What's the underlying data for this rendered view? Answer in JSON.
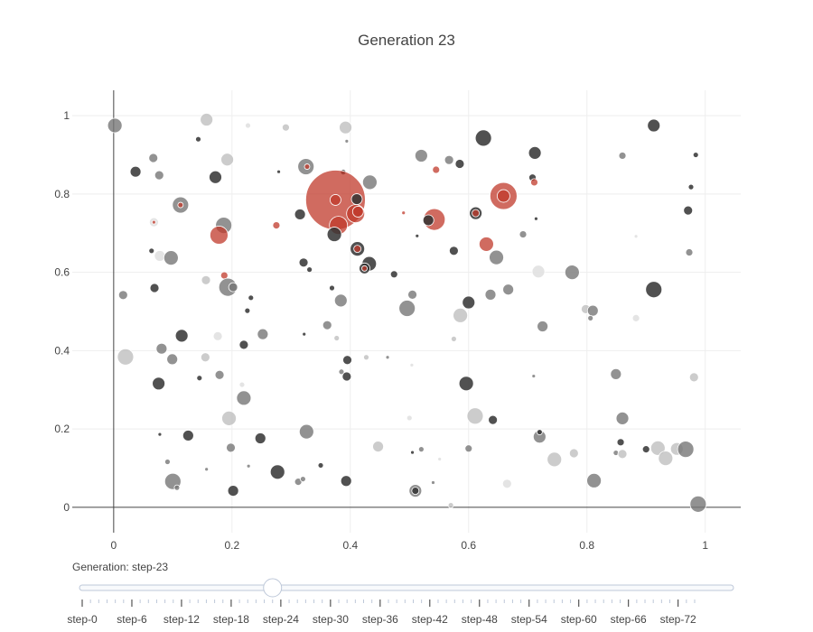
{
  "chart_data": {
    "type": "scatter",
    "title": "Generation 23",
    "xlabel": "",
    "ylabel": "",
    "xlim": [
      -0.07,
      1.06
    ],
    "ylim": [
      -0.065,
      1.065
    ],
    "xticks": [
      0,
      0.2,
      0.4,
      0.6,
      0.8,
      1
    ],
    "xtick_labels": [
      "0",
      "0.2",
      "0.4",
      "0.6",
      "0.8",
      "1"
    ],
    "yticks": [
      0,
      0.2,
      0.4,
      0.6,
      0.8,
      1
    ],
    "ytick_labels": [
      "0",
      "0.2",
      "0.4",
      "0.6",
      "0.8",
      "1"
    ],
    "grid": true,
    "colors": {
      "dark": "#333333",
      "mid": "#777777",
      "light": "#bbbbbb",
      "faint": "#dddddd",
      "red": "#c0392b"
    },
    "points": [
      {
        "x": 0.002,
        "y": 0.975,
        "r": 8,
        "c": "mid"
      },
      {
        "x": 0.157,
        "y": 0.99,
        "r": 7,
        "c": "light"
      },
      {
        "x": 0.227,
        "y": 0.975,
        "r": 3,
        "c": "faint"
      },
      {
        "x": 0.291,
        "y": 0.97,
        "r": 4,
        "c": "light"
      },
      {
        "x": 0.392,
        "y": 0.97,
        "r": 7,
        "c": "light"
      },
      {
        "x": 0.143,
        "y": 0.94,
        "r": 3,
        "c": "dark"
      },
      {
        "x": 0.394,
        "y": 0.935,
        "r": 2,
        "c": "mid"
      },
      {
        "x": 0.625,
        "y": 0.943,
        "r": 9,
        "c": "dark"
      },
      {
        "x": 0.712,
        "y": 0.905,
        "r": 7,
        "c": "dark"
      },
      {
        "x": 0.913,
        "y": 0.975,
        "r": 7,
        "c": "dark"
      },
      {
        "x": 0.067,
        "y": 0.892,
        "r": 5,
        "c": "mid"
      },
      {
        "x": 0.192,
        "y": 0.888,
        "r": 7,
        "c": "light"
      },
      {
        "x": 0.325,
        "y": 0.87,
        "r": 9,
        "c": "mid"
      },
      {
        "x": 0.327,
        "y": 0.87,
        "r": 3,
        "c": "red"
      },
      {
        "x": 0.52,
        "y": 0.898,
        "r": 7,
        "c": "mid"
      },
      {
        "x": 0.567,
        "y": 0.887,
        "r": 5,
        "c": "mid"
      },
      {
        "x": 0.585,
        "y": 0.877,
        "r": 5,
        "c": "dark"
      },
      {
        "x": 0.545,
        "y": 0.862,
        "r": 4,
        "c": "red"
      },
      {
        "x": 0.86,
        "y": 0.898,
        "r": 4,
        "c": "mid"
      },
      {
        "x": 0.984,
        "y": 0.9,
        "r": 3,
        "c": "dark"
      },
      {
        "x": 0.037,
        "y": 0.857,
        "r": 6,
        "c": "dark"
      },
      {
        "x": 0.077,
        "y": 0.848,
        "r": 5,
        "c": "mid"
      },
      {
        "x": 0.172,
        "y": 0.843,
        "r": 7,
        "c": "dark"
      },
      {
        "x": 0.279,
        "y": 0.857,
        "r": 2,
        "c": "dark"
      },
      {
        "x": 0.388,
        "y": 0.856,
        "r": 3,
        "c": "dark"
      },
      {
        "x": 0.433,
        "y": 0.83,
        "r": 8,
        "c": "mid"
      },
      {
        "x": 0.708,
        "y": 0.842,
        "r": 4,
        "c": "dark"
      },
      {
        "x": 0.711,
        "y": 0.83,
        "r": 4,
        "c": "red"
      },
      {
        "x": 0.976,
        "y": 0.818,
        "r": 3,
        "c": "dark"
      },
      {
        "x": 0.113,
        "y": 0.772,
        "r": 9,
        "c": "mid"
      },
      {
        "x": 0.113,
        "y": 0.772,
        "r": 3,
        "c": "red"
      },
      {
        "x": 0.375,
        "y": 0.785,
        "r": 33,
        "c": "red"
      },
      {
        "x": 0.375,
        "y": 0.785,
        "r": 6,
        "c": "red"
      },
      {
        "x": 0.411,
        "y": 0.787,
        "r": 6,
        "c": "dark"
      },
      {
        "x": 0.659,
        "y": 0.795,
        "r": 15,
        "c": "red"
      },
      {
        "x": 0.659,
        "y": 0.795,
        "r": 7,
        "c": "red"
      },
      {
        "x": 0.315,
        "y": 0.748,
        "r": 6,
        "c": "dark"
      },
      {
        "x": 0.409,
        "y": 0.75,
        "r": 10,
        "c": "red"
      },
      {
        "x": 0.413,
        "y": 0.755,
        "r": 6,
        "c": "red"
      },
      {
        "x": 0.49,
        "y": 0.752,
        "r": 2,
        "c": "red"
      },
      {
        "x": 0.542,
        "y": 0.735,
        "r": 12,
        "c": "red"
      },
      {
        "x": 0.532,
        "y": 0.733,
        "r": 6,
        "c": "dark"
      },
      {
        "x": 0.612,
        "y": 0.751,
        "r": 7,
        "c": "dark"
      },
      {
        "x": 0.612,
        "y": 0.751,
        "r": 4,
        "c": "red"
      },
      {
        "x": 0.714,
        "y": 0.737,
        "r": 2,
        "c": "dark"
      },
      {
        "x": 0.971,
        "y": 0.758,
        "r": 5,
        "c": "dark"
      },
      {
        "x": 0.068,
        "y": 0.728,
        "r": 5,
        "c": "faint"
      },
      {
        "x": 0.068,
        "y": 0.728,
        "r": 2,
        "c": "red"
      },
      {
        "x": 0.186,
        "y": 0.72,
        "r": 9,
        "c": "mid"
      },
      {
        "x": 0.178,
        "y": 0.695,
        "r": 10,
        "c": "red"
      },
      {
        "x": 0.275,
        "y": 0.72,
        "r": 4,
        "c": "red"
      },
      {
        "x": 0.38,
        "y": 0.72,
        "r": 10,
        "c": "red"
      },
      {
        "x": 0.373,
        "y": 0.697,
        "r": 8,
        "c": "dark"
      },
      {
        "x": 0.513,
        "y": 0.693,
        "r": 2,
        "c": "dark"
      },
      {
        "x": 0.63,
        "y": 0.672,
        "r": 8,
        "c": "red"
      },
      {
        "x": 0.692,
        "y": 0.697,
        "r": 4,
        "c": "mid"
      },
      {
        "x": 0.883,
        "y": 0.692,
        "r": 2,
        "c": "faint"
      },
      {
        "x": 0.412,
        "y": 0.66,
        "r": 8,
        "c": "dark"
      },
      {
        "x": 0.412,
        "y": 0.66,
        "r": 4,
        "c": "red"
      },
      {
        "x": 0.575,
        "y": 0.655,
        "r": 5,
        "c": "dark"
      },
      {
        "x": 0.064,
        "y": 0.655,
        "r": 3,
        "c": "dark"
      },
      {
        "x": 0.078,
        "y": 0.642,
        "r": 6,
        "c": "faint"
      },
      {
        "x": 0.097,
        "y": 0.637,
        "r": 8,
        "c": "mid"
      },
      {
        "x": 0.647,
        "y": 0.638,
        "r": 8,
        "c": "mid"
      },
      {
        "x": 0.973,
        "y": 0.651,
        "r": 4,
        "c": "mid"
      },
      {
        "x": 0.321,
        "y": 0.625,
        "r": 5,
        "c": "dark"
      },
      {
        "x": 0.331,
        "y": 0.607,
        "r": 3,
        "c": "dark"
      },
      {
        "x": 0.432,
        "y": 0.622,
        "r": 8,
        "c": "dark"
      },
      {
        "x": 0.424,
        "y": 0.61,
        "r": 6,
        "c": "dark"
      },
      {
        "x": 0.424,
        "y": 0.61,
        "r": 3,
        "c": "red"
      },
      {
        "x": 0.474,
        "y": 0.595,
        "r": 4,
        "c": "dark"
      },
      {
        "x": 0.718,
        "y": 0.602,
        "r": 7,
        "c": "faint"
      },
      {
        "x": 0.775,
        "y": 0.6,
        "r": 8,
        "c": "mid"
      },
      {
        "x": 0.187,
        "y": 0.592,
        "r": 4,
        "c": "red"
      },
      {
        "x": 0.156,
        "y": 0.58,
        "r": 5,
        "c": "light"
      },
      {
        "x": 0.193,
        "y": 0.562,
        "r": 10,
        "c": "mid"
      },
      {
        "x": 0.202,
        "y": 0.562,
        "r": 5,
        "c": "mid"
      },
      {
        "x": 0.069,
        "y": 0.56,
        "r": 5,
        "c": "dark"
      },
      {
        "x": 0.913,
        "y": 0.556,
        "r": 9,
        "c": "dark"
      },
      {
        "x": 0.016,
        "y": 0.542,
        "r": 5,
        "c": "mid"
      },
      {
        "x": 0.232,
        "y": 0.535,
        "r": 3,
        "c": "dark"
      },
      {
        "x": 0.369,
        "y": 0.56,
        "r": 3,
        "c": "dark"
      },
      {
        "x": 0.384,
        "y": 0.528,
        "r": 7,
        "c": "mid"
      },
      {
        "x": 0.505,
        "y": 0.543,
        "r": 5,
        "c": "mid"
      },
      {
        "x": 0.6,
        "y": 0.523,
        "r": 7,
        "c": "dark"
      },
      {
        "x": 0.637,
        "y": 0.543,
        "r": 6,
        "c": "mid"
      },
      {
        "x": 0.667,
        "y": 0.556,
        "r": 6,
        "c": "mid"
      },
      {
        "x": 0.496,
        "y": 0.508,
        "r": 9,
        "c": "mid"
      },
      {
        "x": 0.586,
        "y": 0.49,
        "r": 8,
        "c": "light"
      },
      {
        "x": 0.798,
        "y": 0.506,
        "r": 5,
        "c": "light"
      },
      {
        "x": 0.81,
        "y": 0.502,
        "r": 6,
        "c": "mid"
      },
      {
        "x": 0.806,
        "y": 0.483,
        "r": 3,
        "c": "mid"
      },
      {
        "x": 0.226,
        "y": 0.502,
        "r": 3,
        "c": "dark"
      },
      {
        "x": 0.883,
        "y": 0.483,
        "r": 4,
        "c": "faint"
      },
      {
        "x": 0.361,
        "y": 0.465,
        "r": 5,
        "c": "mid"
      },
      {
        "x": 0.725,
        "y": 0.462,
        "r": 6,
        "c": "mid"
      },
      {
        "x": 0.115,
        "y": 0.438,
        "r": 7,
        "c": "dark"
      },
      {
        "x": 0.176,
        "y": 0.437,
        "r": 5,
        "c": "faint"
      },
      {
        "x": 0.252,
        "y": 0.442,
        "r": 6,
        "c": "mid"
      },
      {
        "x": 0.322,
        "y": 0.442,
        "r": 2,
        "c": "dark"
      },
      {
        "x": 0.377,
        "y": 0.432,
        "r": 3,
        "c": "light"
      },
      {
        "x": 0.575,
        "y": 0.43,
        "r": 3,
        "c": "light"
      },
      {
        "x": 0.22,
        "y": 0.415,
        "r": 5,
        "c": "dark"
      },
      {
        "x": 0.081,
        "y": 0.405,
        "r": 6,
        "c": "mid"
      },
      {
        "x": 0.02,
        "y": 0.384,
        "r": 9,
        "c": "light"
      },
      {
        "x": 0.099,
        "y": 0.378,
        "r": 6,
        "c": "mid"
      },
      {
        "x": 0.155,
        "y": 0.383,
        "r": 5,
        "c": "light"
      },
      {
        "x": 0.395,
        "y": 0.376,
        "r": 5,
        "c": "dark"
      },
      {
        "x": 0.427,
        "y": 0.383,
        "r": 3,
        "c": "light"
      },
      {
        "x": 0.463,
        "y": 0.383,
        "r": 2,
        "c": "mid"
      },
      {
        "x": 0.504,
        "y": 0.363,
        "r": 2,
        "c": "faint"
      },
      {
        "x": 0.179,
        "y": 0.338,
        "r": 5,
        "c": "mid"
      },
      {
        "x": 0.145,
        "y": 0.33,
        "r": 3,
        "c": "dark"
      },
      {
        "x": 0.385,
        "y": 0.346,
        "r": 3,
        "c": "mid"
      },
      {
        "x": 0.394,
        "y": 0.334,
        "r": 5,
        "c": "dark"
      },
      {
        "x": 0.849,
        "y": 0.34,
        "r": 6,
        "c": "mid"
      },
      {
        "x": 0.981,
        "y": 0.332,
        "r": 5,
        "c": "light"
      },
      {
        "x": 0.076,
        "y": 0.316,
        "r": 7,
        "c": "dark"
      },
      {
        "x": 0.217,
        "y": 0.313,
        "r": 3,
        "c": "faint"
      },
      {
        "x": 0.596,
        "y": 0.316,
        "r": 8,
        "c": "dark"
      },
      {
        "x": 0.71,
        "y": 0.335,
        "r": 2,
        "c": "mid"
      },
      {
        "x": 0.22,
        "y": 0.279,
        "r": 8,
        "c": "mid"
      },
      {
        "x": 0.195,
        "y": 0.227,
        "r": 8,
        "c": "light"
      },
      {
        "x": 0.611,
        "y": 0.233,
        "r": 9,
        "c": "light"
      },
      {
        "x": 0.641,
        "y": 0.223,
        "r": 5,
        "c": "dark"
      },
      {
        "x": 0.86,
        "y": 0.227,
        "r": 7,
        "c": "mid"
      },
      {
        "x": 0.5,
        "y": 0.228,
        "r": 3,
        "c": "faint"
      },
      {
        "x": 0.078,
        "y": 0.186,
        "r": 2,
        "c": "dark"
      },
      {
        "x": 0.126,
        "y": 0.183,
        "r": 6,
        "c": "dark"
      },
      {
        "x": 0.248,
        "y": 0.176,
        "r": 6,
        "c": "dark"
      },
      {
        "x": 0.326,
        "y": 0.193,
        "r": 8,
        "c": "mid"
      },
      {
        "x": 0.72,
        "y": 0.18,
        "r": 7,
        "c": "mid"
      },
      {
        "x": 0.72,
        "y": 0.192,
        "r": 3,
        "c": "dark"
      },
      {
        "x": 0.857,
        "y": 0.166,
        "r": 4,
        "c": "dark"
      },
      {
        "x": 0.198,
        "y": 0.152,
        "r": 5,
        "c": "mid"
      },
      {
        "x": 0.447,
        "y": 0.155,
        "r": 6,
        "c": "light"
      },
      {
        "x": 0.52,
        "y": 0.148,
        "r": 3,
        "c": "mid"
      },
      {
        "x": 0.505,
        "y": 0.14,
        "r": 2,
        "c": "dark"
      },
      {
        "x": 0.6,
        "y": 0.15,
        "r": 4,
        "c": "mid"
      },
      {
        "x": 0.778,
        "y": 0.138,
        "r": 5,
        "c": "light"
      },
      {
        "x": 0.849,
        "y": 0.139,
        "r": 3,
        "c": "mid"
      },
      {
        "x": 0.9,
        "y": 0.148,
        "r": 4,
        "c": "dark"
      },
      {
        "x": 0.92,
        "y": 0.151,
        "r": 8,
        "c": "light"
      },
      {
        "x": 0.952,
        "y": 0.149,
        "r": 7,
        "c": "light"
      },
      {
        "x": 0.967,
        "y": 0.148,
        "r": 9,
        "c": "mid"
      },
      {
        "x": 0.933,
        "y": 0.125,
        "r": 8,
        "c": "light"
      },
      {
        "x": 0.745,
        "y": 0.122,
        "r": 8,
        "c": "light"
      },
      {
        "x": 0.86,
        "y": 0.136,
        "r": 5,
        "c": "light"
      },
      {
        "x": 0.091,
        "y": 0.116,
        "r": 3,
        "c": "mid"
      },
      {
        "x": 0.157,
        "y": 0.097,
        "r": 2,
        "c": "mid"
      },
      {
        "x": 0.228,
        "y": 0.105,
        "r": 2,
        "c": "mid"
      },
      {
        "x": 0.277,
        "y": 0.09,
        "r": 8,
        "c": "dark"
      },
      {
        "x": 0.35,
        "y": 0.107,
        "r": 3,
        "c": "dark"
      },
      {
        "x": 0.551,
        "y": 0.123,
        "r": 2,
        "c": "faint"
      },
      {
        "x": 0.312,
        "y": 0.065,
        "r": 4,
        "c": "mid"
      },
      {
        "x": 0.32,
        "y": 0.072,
        "r": 3,
        "c": "mid"
      },
      {
        "x": 0.393,
        "y": 0.067,
        "r": 6,
        "c": "dark"
      },
      {
        "x": 0.1,
        "y": 0.066,
        "r": 9,
        "c": "mid"
      },
      {
        "x": 0.107,
        "y": 0.05,
        "r": 3,
        "c": "mid"
      },
      {
        "x": 0.202,
        "y": 0.042,
        "r": 6,
        "c": "dark"
      },
      {
        "x": 0.51,
        "y": 0.042,
        "r": 7,
        "c": "mid"
      },
      {
        "x": 0.51,
        "y": 0.042,
        "r": 4,
        "c": "dark"
      },
      {
        "x": 0.54,
        "y": 0.063,
        "r": 2,
        "c": "mid"
      },
      {
        "x": 0.665,
        "y": 0.06,
        "r": 5,
        "c": "faint"
      },
      {
        "x": 0.812,
        "y": 0.068,
        "r": 8,
        "c": "mid"
      },
      {
        "x": 0.57,
        "y": 0.005,
        "r": 3,
        "c": "light"
      },
      {
        "x": 0.988,
        "y": 0.008,
        "r": 9,
        "c": "mid"
      }
    ]
  },
  "slider": {
    "label": "Generation: step-23",
    "min": 0,
    "max": 74,
    "current": 23,
    "tick_labels": [
      "step-0",
      "step-6",
      "step-12",
      "step-18",
      "step-24",
      "step-30",
      "step-36",
      "step-42",
      "step-48",
      "step-54",
      "step-60",
      "step-66",
      "step-72"
    ],
    "label_steps": [
      0,
      6,
      12,
      18,
      24,
      30,
      36,
      42,
      48,
      54,
      60,
      66,
      72
    ]
  }
}
